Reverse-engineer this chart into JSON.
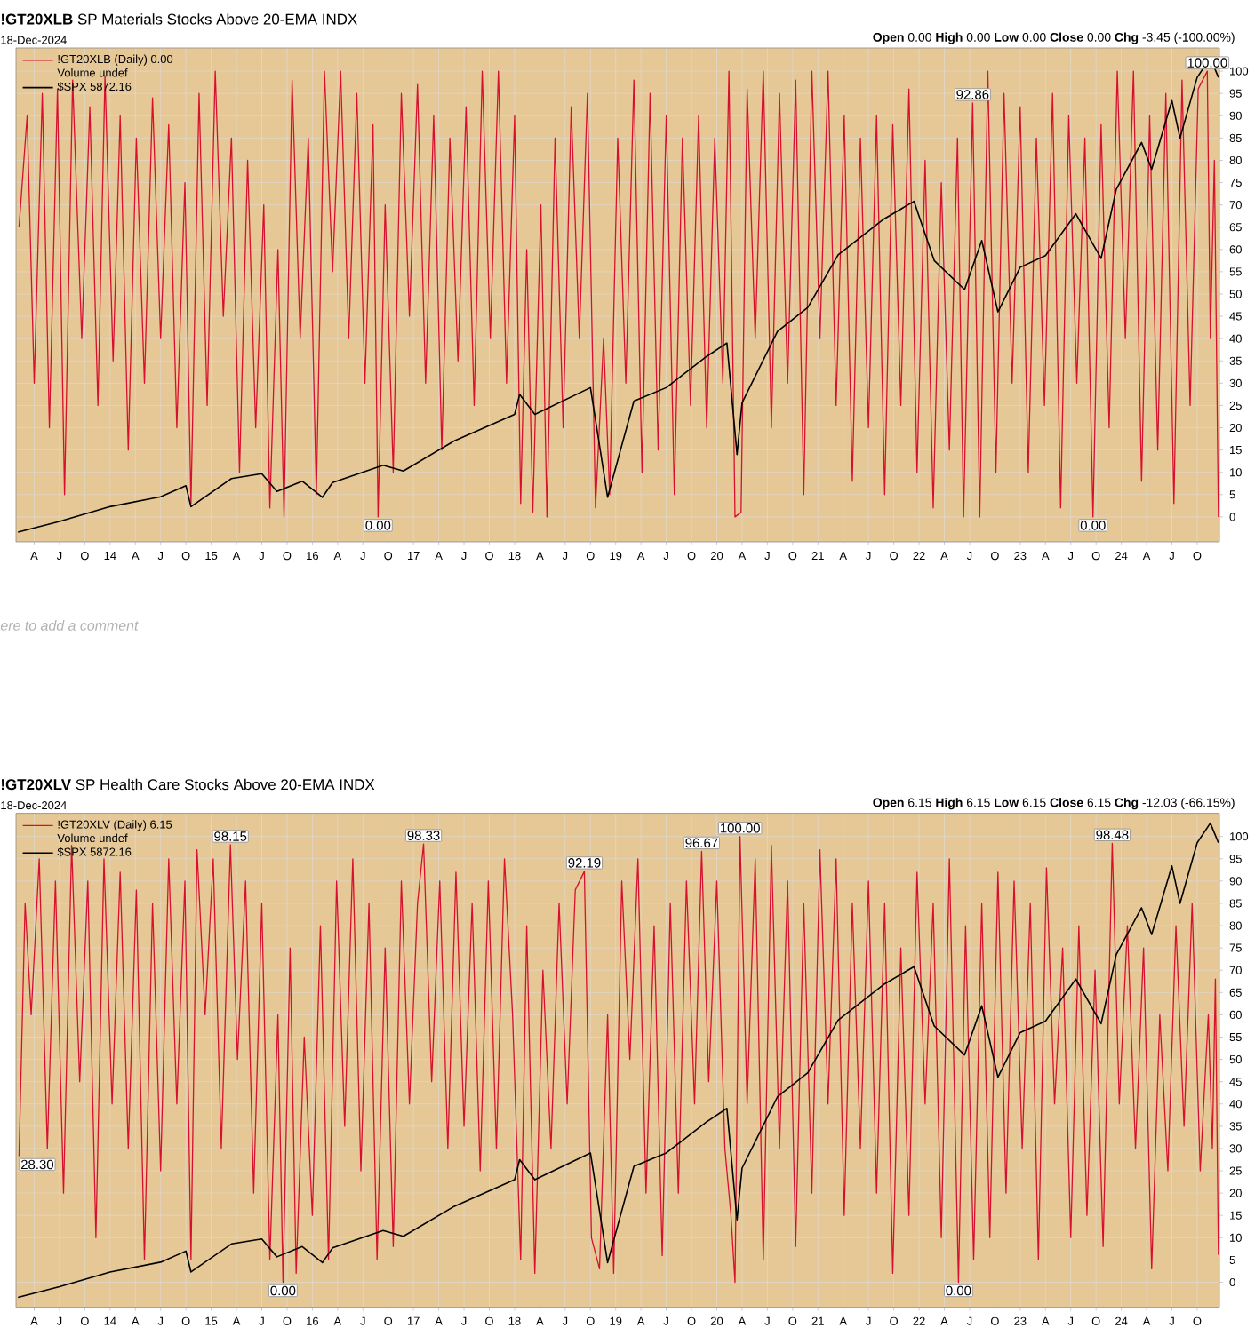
{
  "chart_data": [
    {
      "type": "line",
      "title": "**!GT20XLB** SP Materials Stocks Above 20-EMA INDX",
      "subtitle": "18-Dec-2024",
      "xlim": [
        2013.07,
        2024.97
      ],
      "ylim": [
        -5.6,
        105.2
      ],
      "xticks": [
        {
          "value": 2013.25,
          "label": "A"
        },
        {
          "value": 2013.5,
          "label": "J"
        },
        {
          "value": 2013.75,
          "label": "O"
        },
        {
          "value": 2014,
          "label": "14"
        },
        {
          "value": 2014.25,
          "label": "A"
        },
        {
          "value": 2014.5,
          "label": "J"
        },
        {
          "value": 2014.75,
          "label": "O"
        },
        {
          "value": 2015,
          "label": "15"
        },
        {
          "value": 2015.25,
          "label": "A"
        },
        {
          "value": 2015.5,
          "label": "J"
        },
        {
          "value": 2015.75,
          "label": "O"
        },
        {
          "value": 2016,
          "label": "16"
        },
        {
          "value": 2016.25,
          "label": "A"
        },
        {
          "value": 2016.5,
          "label": "J"
        },
        {
          "value": 2016.75,
          "label": "O"
        },
        {
          "value": 2017,
          "label": "17"
        },
        {
          "value": 2017.25,
          "label": "A"
        },
        {
          "value": 2017.5,
          "label": "J"
        },
        {
          "value": 2017.75,
          "label": "O"
        },
        {
          "value": 2018,
          "label": "18"
        },
        {
          "value": 2018.25,
          "label": "A"
        },
        {
          "value": 2018.5,
          "label": "J"
        },
        {
          "value": 2018.75,
          "label": "O"
        },
        {
          "value": 2019,
          "label": "19"
        },
        {
          "value": 2019.25,
          "label": "A"
        },
        {
          "value": 2019.5,
          "label": "J"
        },
        {
          "value": 2019.75,
          "label": "O"
        },
        {
          "value": 2020,
          "label": "20"
        },
        {
          "value": 2020.25,
          "label": "A"
        },
        {
          "value": 2020.5,
          "label": "J"
        },
        {
          "value": 2020.75,
          "label": "O"
        },
        {
          "value": 2021,
          "label": "21"
        },
        {
          "value": 2021.25,
          "label": "A"
        },
        {
          "value": 2021.5,
          "label": "J"
        },
        {
          "value": 2021.75,
          "label": "O"
        },
        {
          "value": 2022,
          "label": "22"
        },
        {
          "value": 2022.25,
          "label": "A"
        },
        {
          "value": 2022.5,
          "label": "J"
        },
        {
          "value": 2022.75,
          "label": "O"
        },
        {
          "value": 2023,
          "label": "23"
        },
        {
          "value": 2023.25,
          "label": "A"
        },
        {
          "value": 2023.5,
          "label": "J"
        },
        {
          "value": 2023.75,
          "label": "O"
        },
        {
          "value": 2024,
          "label": "24"
        },
        {
          "value": 2024.25,
          "label": "A"
        },
        {
          "value": 2024.5,
          "label": "J"
        },
        {
          "value": 2024.75,
          "label": "O"
        }
      ],
      "yticks": [
        0,
        5,
        10,
        15,
        20,
        25,
        30,
        35,
        40,
        45,
        50,
        55,
        60,
        65,
        70,
        75,
        80,
        85,
        90,
        95,
        100
      ],
      "grid": true,
      "legend": "top left",
      "series": [
        {
          "name": "!GT20XLB (Daily) 0.00",
          "color": "#d6102e",
          "x": [
            2013.1,
            2013.18,
            2013.25,
            2013.33,
            2013.4,
            2013.48,
            2013.55,
            2013.63,
            2013.72,
            2013.8,
            2013.88,
            2013.95,
            2014.03,
            2014.1,
            2014.18,
            2014.26,
            2014.34,
            2014.42,
            2014.5,
            2014.58,
            2014.66,
            2014.74,
            2014.8,
            2014.88,
            2014.96,
            2015.04,
            2015.12,
            2015.2,
            2015.28,
            2015.36,
            2015.44,
            2015.52,
            2015.58,
            2015.66,
            2015.72,
            2015.8,
            2015.88,
            2015.96,
            2016.04,
            2016.12,
            2016.2,
            2016.28,
            2016.36,
            2016.44,
            2016.52,
            2016.6,
            2016.65,
            2016.72,
            2016.8,
            2016.88,
            2016.96,
            2017.04,
            2017.12,
            2017.2,
            2017.28,
            2017.36,
            2017.44,
            2017.52,
            2017.6,
            2017.68,
            2017.76,
            2017.84,
            2017.92,
            2018.0,
            2018.06,
            2018.12,
            2018.18,
            2018.26,
            2018.32,
            2018.4,
            2018.48,
            2018.56,
            2018.64,
            2018.72,
            2018.8,
            2018.88,
            2018.94,
            2019.02,
            2019.1,
            2019.18,
            2019.26,
            2019.34,
            2019.42,
            2019.5,
            2019.58,
            2019.66,
            2019.74,
            2019.82,
            2019.9,
            2019.98,
            2020.06,
            2020.12,
            2020.18,
            2020.24,
            2020.3,
            2020.38,
            2020.46,
            2020.54,
            2020.62,
            2020.7,
            2020.78,
            2020.86,
            2020.94,
            2021.02,
            2021.1,
            2021.18,
            2021.26,
            2021.34,
            2021.42,
            2021.5,
            2021.58,
            2021.66,
            2021.74,
            2021.82,
            2021.9,
            2021.98,
            2022.06,
            2022.14,
            2022.22,
            2022.3,
            2022.38,
            2022.44,
            2022.53,
            2022.6,
            2022.68,
            2022.76,
            2022.84,
            2022.92,
            2023.0,
            2023.08,
            2023.16,
            2023.24,
            2023.32,
            2023.4,
            2023.48,
            2023.56,
            2023.64,
            2023.72,
            2023.8,
            2023.88,
            2023.96,
            2024.04,
            2024.12,
            2024.2,
            2024.28,
            2024.36,
            2024.44,
            2024.52,
            2024.6,
            2024.68,
            2024.76,
            2024.85,
            2024.88,
            2024.92,
            2024.96
          ],
          "values": [
            65,
            90,
            30,
            95,
            20,
            96,
            5,
            98,
            40,
            92,
            25,
            99,
            35,
            90,
            15,
            85,
            30,
            94,
            40,
            88,
            20,
            75,
            3,
            95,
            25,
            100,
            45,
            85,
            10,
            80,
            20,
            70,
            2,
            60,
            0,
            98,
            40,
            85,
            5,
            100,
            55,
            100,
            40,
            95,
            30,
            88,
            0,
            70,
            10,
            95,
            45,
            97,
            30,
            90,
            15,
            85,
            35,
            92,
            25,
            100,
            40,
            100,
            30,
            90,
            3,
            60,
            1,
            70,
            0,
            85,
            20,
            92,
            40,
            95,
            2,
            40,
            5,
            85,
            30,
            98,
            10,
            95,
            15,
            90,
            5,
            85,
            25,
            90,
            20,
            85,
            30,
            100,
            0,
            1,
            96,
            40,
            100,
            20,
            95,
            30,
            98,
            5,
            100,
            40,
            100,
            25,
            90,
            8,
            85,
            20,
            90,
            5,
            88,
            25,
            96,
            10,
            80,
            2,
            75,
            15,
            85,
            0,
            92.86,
            0,
            100,
            10,
            95,
            30,
            92,
            10,
            85,
            25,
            95,
            2,
            90,
            30,
            85,
            0,
            88,
            20,
            100,
            40,
            100,
            8,
            90,
            15,
            95,
            3,
            98,
            25,
            96,
            100,
            40,
            80,
            0
          ]
        },
        {
          "name": "$SPX 5872.16",
          "color": "#000000",
          "x": [
            2013.09,
            2013.5,
            2014.0,
            2014.5,
            2014.75,
            2014.8,
            2015.2,
            2015.5,
            2015.65,
            2015.9,
            2016.1,
            2016.2,
            2016.7,
            2016.9,
            2017.4,
            2018.0,
            2018.05,
            2018.2,
            2018.75,
            2018.92,
            2019.18,
            2019.5,
            2019.9,
            2020.1,
            2020.2,
            2020.25,
            2020.6,
            2020.9,
            2021.2,
            2021.65,
            2021.95,
            2022.15,
            2022.45,
            2022.62,
            2022.78,
            2023.0,
            2023.25,
            2023.55,
            2023.8,
            2023.95,
            2024.2,
            2024.3,
            2024.5,
            2024.58,
            2024.75,
            2024.88,
            2024.96
          ],
          "values": [
            -3.4,
            -1,
            2.3,
            4.5,
            7,
            2.3,
            8.6,
            9.7,
            5.7,
            8,
            4.4,
            7.7,
            11.6,
            10.3,
            17,
            23,
            27.5,
            23,
            29,
            4.4,
            26,
            29,
            36,
            39,
            14,
            25.6,
            41.6,
            47,
            58.8,
            66.8,
            70.8,
            57.5,
            51,
            62,
            46,
            56,
            58.6,
            68,
            58,
            73.5,
            84,
            78,
            93.4,
            85,
            98.6,
            103,
            98.6
          ]
        }
      ],
      "annotations": [
        "Volume undef",
        "**Open** 0.00 **High** 0.00 **Low** 0.00 **Close** 0.00 **Chg** -3.45 (-100.00%)",
        {
          "text": "0.00",
          "x": 2016.65,
          "y": 0
        },
        {
          "text": "92.86",
          "x": 2022.53,
          "y": 92.86
        },
        {
          "text": "0.00",
          "x": 2023.72,
          "y": 0
        },
        {
          "text": "100.00",
          "x": 2024.85,
          "y": 100
        },
        "ere to add a comment"
      ]
    },
    {
      "type": "line",
      "title": "**!GT20XLV** SP Health Care Stocks Above 20-EMA INDX",
      "subtitle": "18-Dec-2024",
      "xlim": [
        2013.07,
        2024.97
      ],
      "ylim": [
        -5.6,
        105.2
      ],
      "xticks": [
        {
          "value": 2013.25,
          "label": "A"
        },
        {
          "value": 2013.5,
          "label": "J"
        },
        {
          "value": 2013.75,
          "label": "O"
        },
        {
          "value": 2014,
          "label": "14"
        },
        {
          "value": 2014.25,
          "label": "A"
        },
        {
          "value": 2014.5,
          "label": "J"
        },
        {
          "value": 2014.75,
          "label": "O"
        },
        {
          "value": 2015,
          "label": "15"
        },
        {
          "value": 2015.25,
          "label": "A"
        },
        {
          "value": 2015.5,
          "label": "J"
        },
        {
          "value": 2015.75,
          "label": "O"
        },
        {
          "value": 2016,
          "label": "16"
        },
        {
          "value": 2016.25,
          "label": "A"
        },
        {
          "value": 2016.5,
          "label": "J"
        },
        {
          "value": 2016.75,
          "label": "O"
        },
        {
          "value": 2017,
          "label": "17"
        },
        {
          "value": 2017.25,
          "label": "A"
        },
        {
          "value": 2017.5,
          "label": "J"
        },
        {
          "value": 2017.75,
          "label": "O"
        },
        {
          "value": 2018,
          "label": "18"
        },
        {
          "value": 2018.25,
          "label": "A"
        },
        {
          "value": 2018.5,
          "label": "J"
        },
        {
          "value": 2018.75,
          "label": "O"
        },
        {
          "value": 2019,
          "label": "19"
        },
        {
          "value": 2019.25,
          "label": "A"
        },
        {
          "value": 2019.5,
          "label": "J"
        },
        {
          "value": 2019.75,
          "label": "O"
        },
        {
          "value": 2020,
          "label": "20"
        },
        {
          "value": 2020.25,
          "label": "A"
        },
        {
          "value": 2020.5,
          "label": "J"
        },
        {
          "value": 2020.75,
          "label": "O"
        },
        {
          "value": 2021,
          "label": "21"
        },
        {
          "value": 2021.25,
          "label": "A"
        },
        {
          "value": 2021.5,
          "label": "J"
        },
        {
          "value": 2021.75,
          "label": "O"
        },
        {
          "value": 2022,
          "label": "22"
        },
        {
          "value": 2022.25,
          "label": "A"
        },
        {
          "value": 2022.5,
          "label": "J"
        },
        {
          "value": 2022.75,
          "label": "O"
        },
        {
          "value": 2023,
          "label": "23"
        },
        {
          "value": 2023.25,
          "label": "A"
        },
        {
          "value": 2023.5,
          "label": "J"
        },
        {
          "value": 2023.75,
          "label": "O"
        },
        {
          "value": 2024,
          "label": "24"
        },
        {
          "value": 2024.25,
          "label": "A"
        },
        {
          "value": 2024.5,
          "label": "J"
        },
        {
          "value": 2024.75,
          "label": "O"
        }
      ],
      "yticks": [
        0,
        5,
        10,
        15,
        20,
        25,
        30,
        35,
        40,
        45,
        50,
        55,
        60,
        65,
        70,
        75,
        80,
        85,
        90,
        95,
        100
      ],
      "grid": true,
      "legend": "top left",
      "series": [
        {
          "name": "!GT20XLV (Daily) 6.15",
          "color": "#d6102e",
          "x": [
            2013.1,
            2013.16,
            2013.22,
            2013.3,
            2013.38,
            2013.46,
            2013.54,
            2013.62,
            2013.7,
            2013.78,
            2013.86,
            2013.94,
            2014.02,
            2014.1,
            2014.18,
            2014.26,
            2014.34,
            2014.42,
            2014.5,
            2014.58,
            2014.66,
            2014.74,
            2014.8,
            2014.86,
            2014.94,
            2015.02,
            2015.1,
            2015.19,
            2015.26,
            2015.34,
            2015.42,
            2015.5,
            2015.58,
            2015.66,
            2015.71,
            2015.78,
            2015.84,
            2015.92,
            2016.0,
            2016.08,
            2016.16,
            2016.24,
            2016.32,
            2016.4,
            2016.48,
            2016.56,
            2016.64,
            2016.72,
            2016.8,
            2016.88,
            2016.96,
            2017.04,
            2017.1,
            2017.18,
            2017.26,
            2017.34,
            2017.42,
            2017.5,
            2017.58,
            2017.66,
            2017.74,
            2017.82,
            2017.9,
            2017.98,
            2018.06,
            2018.12,
            2018.2,
            2018.28,
            2018.36,
            2018.44,
            2018.52,
            2018.6,
            2018.69,
            2018.76,
            2018.84,
            2018.92,
            2018.98,
            2019.06,
            2019.14,
            2019.22,
            2019.3,
            2019.38,
            2019.46,
            2019.54,
            2019.62,
            2019.7,
            2019.78,
            2019.85,
            2019.92,
            2020.0,
            2020.08,
            2020.14,
            2020.18,
            2020.23,
            2020.3,
            2020.38,
            2020.46,
            2020.54,
            2020.62,
            2020.7,
            2020.78,
            2020.86,
            2020.94,
            2021.02,
            2021.1,
            2021.18,
            2021.26,
            2021.34,
            2021.42,
            2021.5,
            2021.58,
            2021.66,
            2021.74,
            2021.82,
            2021.9,
            2021.98,
            2022.06,
            2022.14,
            2022.22,
            2022.3,
            2022.39,
            2022.46,
            2022.54,
            2022.62,
            2022.7,
            2022.78,
            2022.86,
            2022.94,
            2023.02,
            2023.1,
            2023.18,
            2023.26,
            2023.34,
            2023.42,
            2023.5,
            2023.58,
            2023.66,
            2023.74,
            2023.82,
            2023.91,
            2023.98,
            2024.06,
            2024.14,
            2024.22,
            2024.3,
            2024.38,
            2024.46,
            2024.54,
            2024.62,
            2024.7,
            2024.78,
            2024.86,
            2024.9,
            2024.93,
            2024.96
          ],
          "values": [
            28.3,
            85,
            60,
            95,
            30,
            90,
            20,
            98,
            45,
            90,
            10,
            95,
            40,
            92,
            30,
            88,
            5,
            85,
            25,
            95,
            40,
            90,
            5,
            97,
            60,
            95,
            30,
            98.15,
            50,
            90,
            20,
            85,
            5,
            60,
            0,
            75,
            2,
            55,
            15,
            80,
            5,
            90,
            35,
            95,
            25,
            85,
            5,
            75,
            8,
            90,
            40,
            85,
            98.33,
            45,
            90,
            30,
            92,
            35,
            85,
            25,
            90,
            30,
            95,
            60,
            5,
            80,
            2,
            70,
            30,
            85,
            40,
            88,
            92.19,
            10,
            3,
            60,
            2,
            90,
            50,
            95,
            20,
            80,
            6,
            85,
            20,
            90,
            40,
            96.67,
            45,
            90,
            30,
            15,
            0,
            100,
            40,
            95,
            5,
            98,
            30,
            90,
            8,
            85,
            20,
            97,
            40,
            95,
            15,
            85,
            30,
            90,
            20,
            85,
            2,
            75,
            15,
            92,
            40,
            85,
            10,
            95,
            0,
            80,
            5,
            85,
            10,
            92,
            20,
            90,
            30,
            85,
            5,
            93,
            40,
            75,
            10,
            80,
            15,
            70,
            8,
            98.48,
            40,
            80,
            30,
            75,
            3,
            60,
            25,
            80,
            35,
            85,
            25,
            60,
            30,
            68,
            6.15
          ]
        },
        {
          "name": "$SPX 5872.16",
          "color": "#000000",
          "x": [
            2013.09,
            2013.5,
            2014.0,
            2014.5,
            2014.75,
            2014.8,
            2015.2,
            2015.5,
            2015.65,
            2015.9,
            2016.1,
            2016.2,
            2016.7,
            2016.9,
            2017.4,
            2018.0,
            2018.05,
            2018.2,
            2018.75,
            2018.92,
            2019.18,
            2019.5,
            2019.9,
            2020.1,
            2020.2,
            2020.25,
            2020.6,
            2020.9,
            2021.2,
            2021.65,
            2021.95,
            2022.15,
            2022.45,
            2022.62,
            2022.78,
            2023.0,
            2023.25,
            2023.55,
            2023.8,
            2023.95,
            2024.2,
            2024.3,
            2024.5,
            2024.58,
            2024.75,
            2024.88,
            2024.96
          ],
          "values": [
            -3.4,
            -1,
            2.3,
            4.5,
            7,
            2.3,
            8.6,
            9.7,
            5.7,
            8,
            4.4,
            7.7,
            11.6,
            10.3,
            17,
            23,
            27.5,
            23,
            29,
            4.4,
            26,
            29,
            36,
            39,
            14,
            25.6,
            41.6,
            47,
            58.8,
            66.8,
            70.8,
            57.5,
            51,
            62,
            46,
            56,
            58.6,
            68,
            58,
            73.5,
            84,
            78,
            93.4,
            85,
            98.6,
            103,
            98.6
          ]
        }
      ],
      "annotations": [
        "Volume undef",
        "**Open** 6.15 **High** 6.15 **Low** 6.15 **Close** 6.15 **Chg** -12.03 (-66.15%)",
        {
          "text": "28.30",
          "x": 2013.1,
          "y": 28.3
        },
        {
          "text": "98.15",
          "x": 2015.19,
          "y": 98.15
        },
        {
          "text": "0.00",
          "x": 2015.71,
          "y": 0
        },
        {
          "text": "98.33",
          "x": 2017.1,
          "y": 98.33
        },
        {
          "text": "92.19",
          "x": 2018.69,
          "y": 92.19
        },
        {
          "text": "96.67",
          "x": 2019.85,
          "y": 96.67
        },
        {
          "text": "100.00",
          "x": 2020.23,
          "y": 100
        },
        {
          "text": "0.00",
          "x": 2022.39,
          "y": 0
        },
        {
          "text": "98.48",
          "x": 2023.91,
          "y": 98.48
        }
      ]
    }
  ]
}
